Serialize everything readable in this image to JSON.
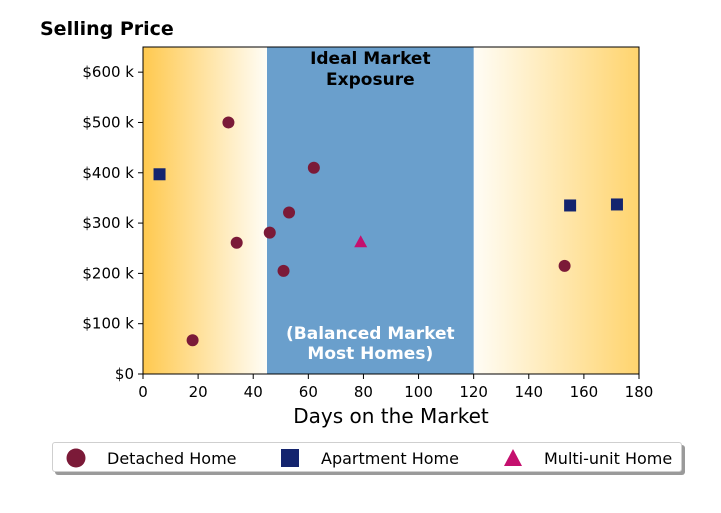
{
  "chart_data": {
    "type": "scatter",
    "title": "Selling Price",
    "xlabel": "Days on the Market",
    "ylabel": "",
    "xlim": [
      0,
      180
    ],
    "ylim": [
      0,
      650000
    ],
    "xticks": [
      0,
      20,
      40,
      60,
      80,
      100,
      120,
      140,
      160,
      180
    ],
    "xtick_labels": [
      "0",
      "20",
      "40",
      "60",
      "80",
      "100",
      "120",
      "140",
      "160",
      "180"
    ],
    "yticks": [
      0,
      100000,
      200000,
      300000,
      400000,
      500000,
      600000
    ],
    "ytick_labels": [
      "$0",
      "$100 k",
      "$200 k",
      "$300 k",
      "$400 k",
      "$500 k",
      "$600 k"
    ],
    "grid": false,
    "legend_position": "bottom",
    "bands": [
      {
        "label": "Ideal Market Exposure",
        "sublabel": "(Balanced Market Most Homes)",
        "x_start": 45,
        "x_end": 120,
        "color": "#6a9fcc"
      }
    ],
    "edge_gradient_color": "#ffc94f",
    "series": [
      {
        "name": "Detached Home",
        "marker": "circle",
        "color": "#7b1a38",
        "points": [
          [
            18,
            67000
          ],
          [
            31,
            500000
          ],
          [
            34,
            261000
          ],
          [
            46,
            281000
          ],
          [
            51,
            205000
          ],
          [
            53,
            321000
          ],
          [
            62,
            410000
          ],
          [
            153,
            215000
          ]
        ]
      },
      {
        "name": "Apartment Home",
        "marker": "square",
        "color": "#14246e",
        "points": [
          [
            6,
            397000
          ],
          [
            155,
            335000
          ],
          [
            172,
            337000
          ]
        ]
      },
      {
        "name": "Multi-unit Home",
        "marker": "triangle",
        "color": "#c4106e",
        "points": [
          [
            79,
            262000
          ]
        ]
      }
    ]
  }
}
